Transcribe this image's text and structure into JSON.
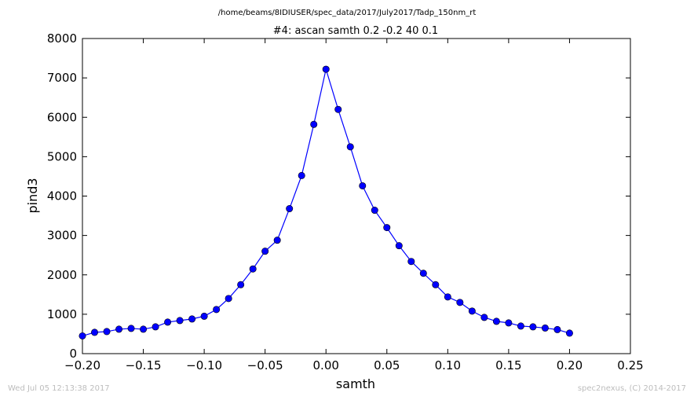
{
  "figure": {
    "suptitle": "/home/beams/8IDIUSER/spec_data/2017/July2017/Tadp_150nm_rt",
    "footer_left": "Wed Jul 05 12:13:38 2017",
    "footer_right": "spec2nexus, (C) 2014-2017"
  },
  "chart_data": {
    "type": "line",
    "title": "#4: ascan  samth 0.2 -0.2  40 0.1",
    "xlabel": "samth",
    "ylabel": "pind3",
    "xlim": [
      -0.2,
      0.25
    ],
    "ylim": [
      0,
      8000
    ],
    "xticks": [
      -0.2,
      -0.15,
      -0.1,
      -0.05,
      0.0,
      0.05,
      0.1,
      0.15,
      0.2,
      0.25
    ],
    "xtick_labels": [
      "−0.20",
      "−0.15",
      "−0.10",
      "−0.05",
      "0.00",
      "0.05",
      "0.10",
      "0.15",
      "0.20",
      "0.25"
    ],
    "yticks": [
      0,
      1000,
      2000,
      3000,
      4000,
      5000,
      6000,
      7000,
      8000
    ],
    "ytick_labels": [
      "0",
      "1000",
      "2000",
      "3000",
      "4000",
      "5000",
      "6000",
      "7000",
      "8000"
    ],
    "grid": false,
    "marker": "circle",
    "line_color": "#0000ff",
    "marker_color": "#0000ff",
    "series": [
      {
        "x": [
          -0.2,
          -0.19,
          -0.18,
          -0.17,
          -0.16,
          -0.15,
          -0.14,
          -0.13,
          -0.12,
          -0.11,
          -0.1,
          -0.09,
          -0.08,
          -0.07,
          -0.06,
          -0.05,
          -0.04,
          -0.03,
          -0.02,
          -0.01,
          0.0,
          0.01,
          0.02,
          0.03,
          0.04,
          0.05,
          0.06,
          0.07,
          0.08,
          0.09,
          0.1,
          0.11,
          0.12,
          0.13,
          0.14,
          0.15,
          0.16,
          0.17,
          0.18,
          0.19,
          0.2
        ],
        "y": [
          450,
          540,
          560,
          620,
          640,
          620,
          680,
          800,
          840,
          880,
          950,
          1120,
          1400,
          1750,
          2150,
          2600,
          2880,
          3680,
          4520,
          5820,
          7220,
          6200,
          5250,
          4260,
          3640,
          3200,
          2740,
          2340,
          2040,
          1750,
          1440,
          1300,
          1080,
          920,
          820,
          780,
          700,
          680,
          650,
          610,
          520
        ]
      }
    ]
  }
}
